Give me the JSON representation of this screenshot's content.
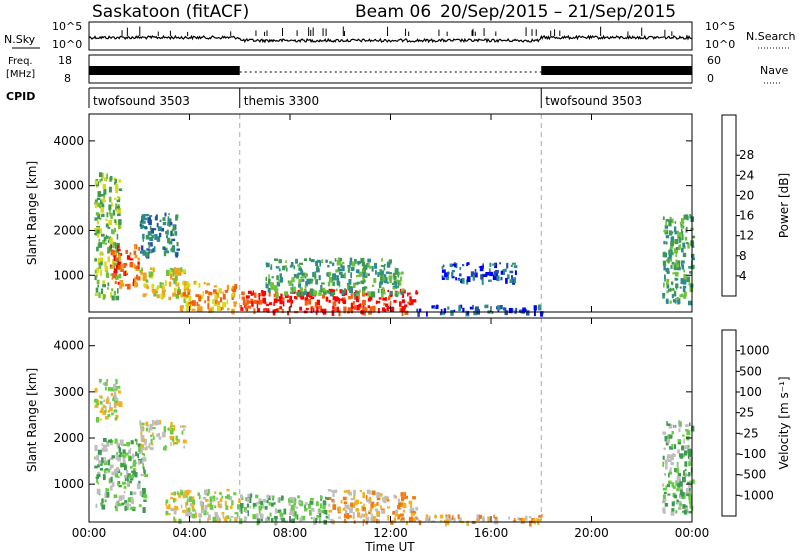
{
  "header": {
    "station": "Saskatoon (fitACF)",
    "beam": "Beam 06",
    "date_range": "20/Sep/2015 – 21/Sep/2015"
  },
  "top_panels": {
    "nsky_label": "N.Sky",
    "nsky_ticks": [
      "10^5",
      "10^0"
    ],
    "nsearch_label": "N.Search",
    "nsearch_ticks": [
      "10^5",
      "10^0"
    ],
    "freq_label_line1": "Freq.",
    "freq_label_line2": "[MHz]",
    "freq_ticks": [
      "18",
      "8"
    ],
    "nave_label": "Nave",
    "nave_ticks": [
      "60",
      "0"
    ],
    "cpid_label": "CPID",
    "cpid_segments": [
      {
        "name": "twofsound 3503",
        "start_hr": 0,
        "end_hr": 6
      },
      {
        "name": "themis 3300",
        "start_hr": 6,
        "end_hr": 18
      },
      {
        "name": "twofsound 3503",
        "start_hr": 18,
        "end_hr": 24
      }
    ]
  },
  "x_axis": {
    "ticks": [
      "00:00",
      "04:00",
      "08:00",
      "12:00",
      "16:00",
      "20:00",
      "00:00"
    ],
    "title": "Time UT"
  },
  "chart_data": [
    {
      "type": "heatmap",
      "name": "power",
      "ylabel": "Slant Range [km]",
      "yticks": [
        "1000",
        "2000",
        "3000",
        "4000"
      ],
      "ylim": [
        180,
        4600
      ],
      "xlim_hours": [
        0,
        24
      ],
      "colorbar": {
        "label": "Power [dB]",
        "ticks": [
          "4",
          "8",
          "12",
          "16",
          "20",
          "24",
          "28"
        ],
        "colors": [
          "#0000ff",
          "#1f4fa8",
          "#2f8a8a",
          "#3d9a50",
          "#6fc03a",
          "#d9d91a",
          "#f0a020",
          "#f06010",
          "#ff0000"
        ]
      },
      "regions": [
        {
          "t0": 0.2,
          "t1": 1.2,
          "r0": 500,
          "r1": 3300,
          "level": 4
        },
        {
          "t0": 0.8,
          "t1": 2.0,
          "r0": 800,
          "r1": 1700,
          "level": 7
        },
        {
          "t0": 2.0,
          "t1": 3.5,
          "r0": 1500,
          "r1": 2400,
          "level": 2
        },
        {
          "t0": 2.0,
          "t1": 3.8,
          "r0": 500,
          "r1": 1200,
          "level": 5
        },
        {
          "t0": 3.5,
          "t1": 5.8,
          "r0": 250,
          "r1": 900,
          "level": 6
        },
        {
          "t0": 6.0,
          "t1": 13.0,
          "r0": 200,
          "r1": 700,
          "level": 8
        },
        {
          "t0": 7.0,
          "t1": 12.5,
          "r0": 600,
          "r1": 1400,
          "level": 3
        },
        {
          "t0": 13.0,
          "t1": 18.0,
          "r0": 180,
          "r1": 350,
          "level": 1
        },
        {
          "t0": 14.0,
          "t1": 17.0,
          "r0": 900,
          "r1": 1300,
          "level": 1
        },
        {
          "t0": 22.8,
          "t1": 24.0,
          "r0": 400,
          "r1": 2400,
          "level": 3
        }
      ]
    },
    {
      "type": "heatmap",
      "name": "velocity",
      "ylabel": "Slant Range [km]",
      "yticks": [
        "1000",
        "2000",
        "3000",
        "4000"
      ],
      "ylim": [
        180,
        4600
      ],
      "xlim_hours": [
        0,
        24
      ],
      "colorbar": {
        "label": "Velocity [m s⁻¹]",
        "ticks": [
          "1000",
          "500",
          "100",
          "25",
          "-25",
          "-100",
          "-500",
          "-1000"
        ],
        "colors": [
          "#1f3fa8",
          "#2f6fa0",
          "#3d9a50",
          "#66cc44",
          "#bebebe",
          "#f0b020",
          "#f07a10",
          "#ff3010",
          "#ff0000"
        ]
      },
      "regions": [
        {
          "t0": 0.2,
          "t1": 1.2,
          "r0": 2400,
          "r1": 3300,
          "level": 4
        },
        {
          "t0": 0.2,
          "t1": 2.2,
          "r0": 500,
          "r1": 2000,
          "level": 3
        },
        {
          "t0": 2.0,
          "t1": 3.8,
          "r0": 1800,
          "r1": 2400,
          "level": 4
        },
        {
          "t0": 3.0,
          "t1": 6.0,
          "r0": 250,
          "r1": 900,
          "level": 4
        },
        {
          "t0": 6.0,
          "t1": 9.5,
          "r0": 200,
          "r1": 800,
          "level": 3
        },
        {
          "t0": 9.5,
          "t1": 13.0,
          "r0": 200,
          "r1": 900,
          "level": 5
        },
        {
          "t0": 13.0,
          "t1": 18.0,
          "r0": 180,
          "r1": 350,
          "level": 5
        },
        {
          "t0": 22.8,
          "t1": 24.0,
          "r0": 400,
          "r1": 2400,
          "level": 3
        }
      ]
    }
  ]
}
